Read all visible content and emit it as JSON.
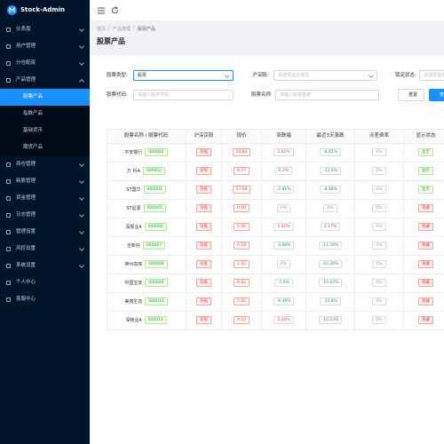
{
  "sidebar": {
    "logo": "Stock-Admin",
    "menu": [
      "仪表盘",
      "用户管理",
      "分仓配资",
      "产品管理"
    ],
    "product_children": [
      "股票产品",
      "指数产品",
      "基础货币",
      "期货产品"
    ],
    "menu_after": [
      "持仓管理",
      "新股管理",
      "资金管理",
      "日志管理",
      "管理设置",
      "风控设置",
      "系统设置",
      "个人中心",
      "客服中心"
    ]
  },
  "breadcrumb": [
    "首页",
    "产品管理",
    "股票产品"
  ],
  "title": "股票产品",
  "filters": {
    "type_label": "股票类型:",
    "type_value": "股票",
    "market_label": "沪深股:",
    "market_placeholder": "请选择显示状态",
    "lock_label": "锁定状态:",
    "lock_placeholder": "请选择锁定状态",
    "code_label": "股票代码:",
    "code_placeholder": "请输入股票代码",
    "name_label": "股票名称:",
    "name_placeholder": "请输入股票名称",
    "reset": "重置",
    "search": "查询"
  },
  "table": {
    "columns": [
      "股票名称 / 股票代码",
      "沪深京股",
      "现价",
      "涨跌幅",
      "最近3天涨跌",
      "点差费率",
      "显示状态"
    ],
    "rows": [
      [
        "平安银行",
        "000001",
        "深股",
        "12.82",
        "1.01%",
        "-8.65%",
        "0%",
        "显示"
      ],
      [
        "万 科A",
        "000002",
        "深股",
        "8.77",
        "6.2%",
        "-12.6%",
        "0%",
        "显示"
      ],
      [
        "ST国华",
        "000004",
        "深股",
        "17.98",
        "-2.81%",
        "-8.48%",
        "0%",
        "显示"
      ],
      [
        "ST星源",
        "000005",
        "深股",
        "0.00",
        "0%",
        "0%",
        "0%",
        "隐藏"
      ],
      [
        "深振业A",
        "000006",
        "深股",
        "5.90",
        "1.02%",
        "2.17%",
        "0%",
        "隐藏"
      ],
      [
        "全新好",
        "000007",
        "深股",
        "6.58",
        "-3.08%",
        "-11.26%",
        "0%",
        "隐藏"
      ],
      [
        "神州高铁",
        "000008",
        "深股",
        "2.22",
        "0%",
        "-10.26%",
        "0%",
        "隐藏"
      ],
      [
        "中国宝安",
        "000009",
        "深股",
        "8.83",
        "-1.6%",
        "-15.07%",
        "0%",
        "隐藏"
      ],
      [
        "美丽生态",
        "000010",
        "深股",
        "2.85",
        "-0.49%",
        "-15.8%",
        "0%",
        "隐藏"
      ],
      [
        "深物业A",
        "000011",
        "深股",
        "9.19",
        "2.34%",
        "-10.23%",
        "0%",
        "隐藏"
      ]
    ]
  }
}
